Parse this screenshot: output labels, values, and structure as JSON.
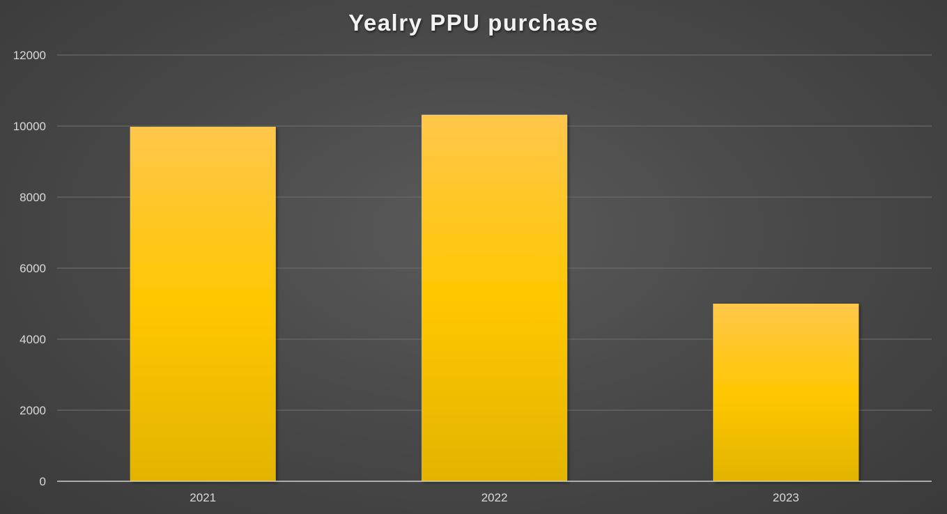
{
  "chart_data": {
    "type": "bar",
    "title": "Yealry PPU purchase",
    "xlabel": "",
    "ylabel": "",
    "categories": [
      "2021",
      "2022",
      "2023"
    ],
    "series": [
      {
        "values": [
          9980,
          10320,
          5000
        ]
      }
    ],
    "ylim": [
      0,
      12000
    ],
    "yticks": [
      "0",
      "2000",
      "4000",
      "6000",
      "8000",
      "10000",
      "12000"
    ],
    "grid": true,
    "legend": "none",
    "colors": {
      "bar_top": "#ffc74a",
      "bar_mid": "#ffc700",
      "bar_bottom": "#e2b400",
      "gridline": "#6a6a6a",
      "axis": "#d0d0d0"
    }
  }
}
